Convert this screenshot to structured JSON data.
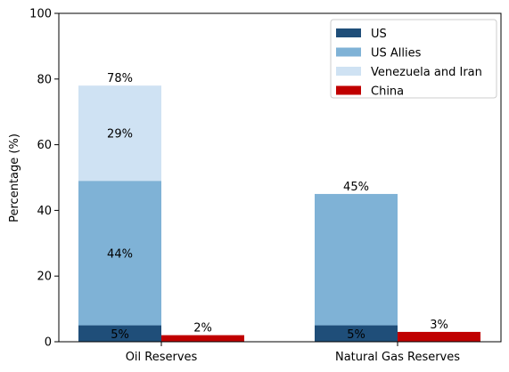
{
  "chart_data": {
    "type": "bar",
    "stacked": true,
    "categories": [
      "Oil Reserves",
      "Natural Gas Reserves"
    ],
    "ylabel": "Percentage (%)",
    "xlabel": "",
    "ylim": [
      0,
      100
    ],
    "yticks": [
      0,
      20,
      40,
      60,
      80,
      100
    ],
    "grid": false,
    "legend_position": "top-right",
    "groups": [
      {
        "name": "us_alliance",
        "segments": [
          {
            "series": "US",
            "values": [
              5,
              5
            ],
            "labels": [
              "5%",
              "5%"
            ],
            "color": "#1f4e79"
          },
          {
            "series": "US Allies",
            "values": [
              44,
              40
            ],
            "labels": [
              "44%",
              ""
            ],
            "color": "#7fb2d6"
          },
          {
            "series": "Venezuela and Iran",
            "values": [
              29,
              0
            ],
            "labels": [
              "29%",
              ""
            ],
            "color": "#cfe2f3"
          }
        ],
        "totals": [
          78,
          45
        ],
        "total_labels": [
          "78%",
          "45%"
        ]
      },
      {
        "name": "china",
        "segments": [
          {
            "series": "China",
            "values": [
              2,
              3
            ],
            "labels": [
              "",
              ""
            ],
            "color": "#c00000"
          }
        ],
        "totals": [
          2,
          3
        ],
        "total_labels": [
          "2%",
          "3%"
        ]
      }
    ],
    "legend": [
      {
        "label": "US",
        "color": "#1f4e79"
      },
      {
        "label": "US Allies",
        "color": "#7fb2d6"
      },
      {
        "label": "Venezuela and Iran",
        "color": "#cfe2f3"
      },
      {
        "label": "China",
        "color": "#c00000"
      }
    ]
  }
}
